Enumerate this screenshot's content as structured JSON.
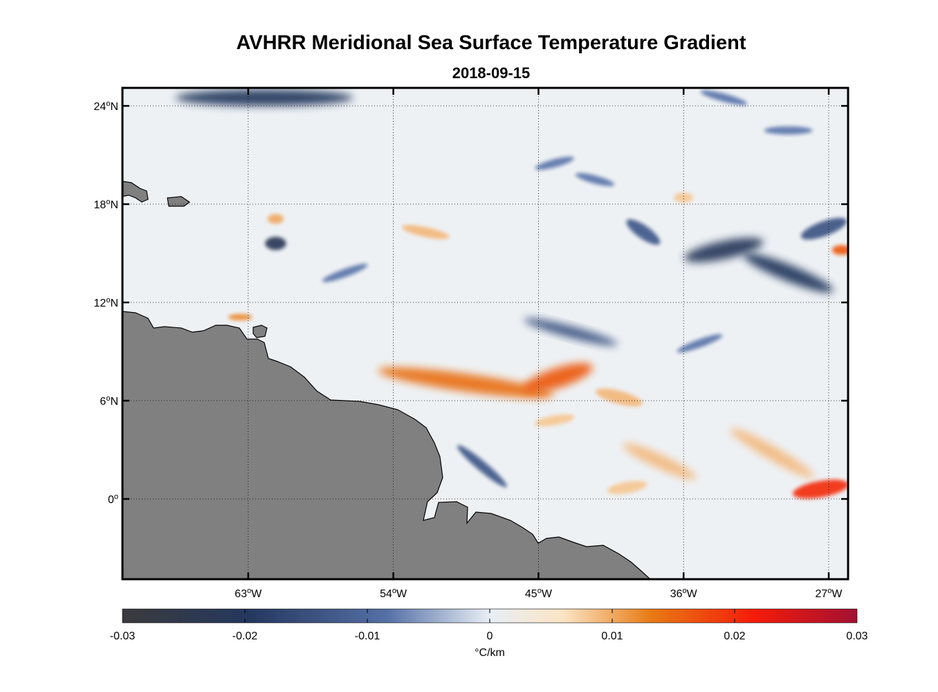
{
  "title": "AVHRR Meridional Sea Surface Temperature Gradient",
  "subtitle": "2018-09-15",
  "map": {
    "lon_range": [
      -70.8,
      -25.8
    ],
    "lat_range": [
      -4.9,
      25.1
    ],
    "x_ticks": [
      {
        "lon": -63,
        "deg": "63",
        "hem": "W"
      },
      {
        "lon": -54,
        "deg": "54",
        "hem": "W"
      },
      {
        "lon": -45,
        "deg": "45",
        "hem": "W"
      },
      {
        "lon": -36,
        "deg": "36",
        "hem": "W"
      },
      {
        "lon": -27,
        "deg": "27",
        "hem": "W"
      }
    ],
    "y_ticks": [
      {
        "lat": 24,
        "deg": "24",
        "hem": "N"
      },
      {
        "lat": 18,
        "deg": "18",
        "hem": "N"
      },
      {
        "lat": 12,
        "deg": "12",
        "hem": "N"
      },
      {
        "lat": 6,
        "deg": "6",
        "hem": "N"
      },
      {
        "lat": 0,
        "deg": "0",
        "hem": ""
      }
    ],
    "grid": "dotted",
    "land_color": "#808080",
    "ocean_background": "#eef1f4"
  },
  "colorbar": {
    "min": -0.03,
    "max": 0.03,
    "tick_labels": [
      "-0.03",
      "-0.02",
      "-0.01",
      "0",
      "0.01",
      "0.02",
      "0.03"
    ],
    "tick_values": [
      -0.03,
      -0.02,
      -0.01,
      0,
      0.01,
      0.02,
      0.03
    ],
    "label": "°C/km",
    "colors": [
      "#3b3b3d",
      "#24375e",
      "#5570a6",
      "#e8eef5",
      "#fbe4c4",
      "#e87a14",
      "#f51b0a",
      "#a31032"
    ]
  },
  "features": [
    {
      "name": "warm-front-main",
      "value": 0.014,
      "lon": -49.5,
      "lat": 7.1,
      "len": 11,
      "wid": 1.1,
      "ang": -8
    },
    {
      "name": "warm-front-east-a",
      "value": 0.016,
      "lon": -43.8,
      "lat": 7.4,
      "len": 4.5,
      "wid": 1.2,
      "ang": 18
    },
    {
      "name": "warm-front-east-b",
      "value": 0.009,
      "lon": -40,
      "lat": 6.2,
      "len": 3,
      "wid": 0.8,
      "ang": -15
    },
    {
      "name": "warm-front-upper",
      "value": 0.009,
      "lon": -52,
      "lat": 16.3,
      "len": 3,
      "wid": 0.6,
      "ang": -12
    },
    {
      "name": "warm-band-south-a",
      "value": 0.009,
      "lon": -37.5,
      "lat": 2.3,
      "len": 5,
      "wid": 0.8,
      "ang": -25
    },
    {
      "name": "warm-band-south-b",
      "value": 0.009,
      "lon": -30.5,
      "lat": 2.8,
      "len": 6,
      "wid": 0.8,
      "ang": -30
    },
    {
      "name": "warm-band-south-c",
      "value": 0.008,
      "lon": -39.5,
      "lat": 0.7,
      "len": 2.5,
      "wid": 0.7,
      "ang": 10
    },
    {
      "name": "warm-band-east-edge",
      "value": 0.02,
      "lon": -27.5,
      "lat": 0.6,
      "len": 3.5,
      "wid": 1.0,
      "ang": 10
    },
    {
      "name": "warm-band-mid",
      "value": 0.008,
      "lon": -44,
      "lat": 4.8,
      "len": 2.5,
      "wid": 0.6,
      "ang": 10
    },
    {
      "name": "warm-spot-north",
      "value": 0.008,
      "lon": -36,
      "lat": 18.4,
      "len": 1.2,
      "wid": 0.6,
      "ang": 0
    },
    {
      "name": "warm-spot-east",
      "value": 0.016,
      "lon": -26.2,
      "lat": 15.2,
      "len": 1.2,
      "wid": 0.6,
      "ang": 0
    },
    {
      "name": "warm-spot-island",
      "value": 0.01,
      "lon": -61.3,
      "lat": 17.1,
      "len": 1,
      "wid": 0.6,
      "ang": 0
    },
    {
      "name": "warm-spot-coast",
      "value": 0.012,
      "lon": -63.5,
      "lat": 11.1,
      "len": 1.5,
      "wid": 0.4,
      "ang": 0
    },
    {
      "name": "cold-band-north",
      "value": -0.02,
      "lon": -62,
      "lat": 24.5,
      "len": 11,
      "wid": 1.0,
      "ang": 0
    },
    {
      "name": "cold-band-east-a",
      "value": -0.021,
      "lon": -33.5,
      "lat": 15.2,
      "len": 5,
      "wid": 1.1,
      "ang": 12
    },
    {
      "name": "cold-band-east-b",
      "value": -0.02,
      "lon": -29.5,
      "lat": 13.8,
      "len": 6,
      "wid": 1.0,
      "ang": -22
    },
    {
      "name": "cold-band-east-c",
      "value": -0.014,
      "lon": -27.3,
      "lat": 16.5,
      "len": 3,
      "wid": 0.9,
      "ang": 20
    },
    {
      "name": "cold-band-east-d",
      "value": -0.013,
      "lon": -38.5,
      "lat": 16.3,
      "len": 2.5,
      "wid": 0.8,
      "ang": -35
    },
    {
      "name": "cold-band-mid",
      "value": -0.014,
      "lon": -43,
      "lat": 10.2,
      "len": 6,
      "wid": 0.7,
      "ang": -15
    },
    {
      "name": "cold-band-south",
      "value": -0.013,
      "lon": -48.5,
      "lat": 2.0,
      "len": 4,
      "wid": 0.6,
      "ang": -40
    },
    {
      "name": "cold-spot-island",
      "value": -0.022,
      "lon": -61.3,
      "lat": 15.6,
      "len": 1.3,
      "wid": 0.8,
      "ang": 0
    },
    {
      "name": "cold-streak-a",
      "value": -0.008,
      "lon": -57,
      "lat": 13.8,
      "len": 3,
      "wid": 0.5,
      "ang": 20
    },
    {
      "name": "cold-streak-b",
      "value": -0.008,
      "lon": -44,
      "lat": 20.5,
      "len": 2.5,
      "wid": 0.5,
      "ang": 15
    },
    {
      "name": "cold-streak-c",
      "value": -0.008,
      "lon": -41.5,
      "lat": 19.5,
      "len": 2.5,
      "wid": 0.5,
      "ang": -15
    },
    {
      "name": "cold-streak-d",
      "value": -0.008,
      "lon": -35,
      "lat": 9.5,
      "len": 3,
      "wid": 0.5,
      "ang": 20
    },
    {
      "name": "cold-streak-e",
      "value": -0.008,
      "lon": -33.5,
      "lat": 24.5,
      "len": 3,
      "wid": 0.5,
      "ang": -15
    },
    {
      "name": "cold-streak-f",
      "value": -0.008,
      "lon": -29.5,
      "lat": 22.5,
      "len": 3,
      "wid": 0.5,
      "ang": 0
    }
  ]
}
